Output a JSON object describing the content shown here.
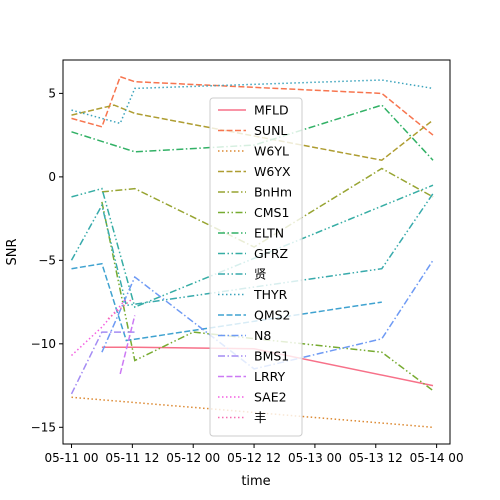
{
  "chart_data": {
    "type": "line",
    "xlabel": "time",
    "ylabel": "SNR",
    "xlim": [
      -0.07,
      3.11
    ],
    "ylim": [
      -16.0,
      7.0
    ],
    "x_ticks": [
      {
        "v": 0.0,
        "label": "05-11 00"
      },
      {
        "v": 0.5,
        "label": "05-11 12"
      },
      {
        "v": 1.0,
        "label": "05-12 00"
      },
      {
        "v": 1.5,
        "label": "05-12 12"
      },
      {
        "v": 2.0,
        "label": "05-13 00"
      },
      {
        "v": 2.5,
        "label": "05-13 12"
      },
      {
        "v": 3.0,
        "label": "05-14 00"
      }
    ],
    "y_ticks": [
      {
        "v": 5,
        "label": "5"
      },
      {
        "v": 0,
        "label": "0"
      },
      {
        "v": -5,
        "label": "−5"
      },
      {
        "v": -10,
        "label": "−10"
      },
      {
        "v": -15,
        "label": "−15"
      }
    ],
    "legend_position": "center",
    "series": [
      {
        "name": "MFLD",
        "color": "#f77189",
        "dash": "solid",
        "x": [
          0.25,
          0.52,
          1.5,
          2.97
        ],
        "y": [
          -10.2,
          -10.2,
          -10.3,
          -12.5
        ]
      },
      {
        "name": "SUNL",
        "color": "#f7754f",
        "dash": "dashed",
        "x": [
          0.0,
          0.25,
          0.4,
          0.52,
          2.55,
          2.97
        ],
        "y": [
          3.5,
          3.0,
          6.0,
          5.7,
          5.0,
          2.5
        ]
      },
      {
        "name": "W6YL",
        "color": "#dc8932",
        "dash": "dotted",
        "x": [
          0.0,
          2.97
        ],
        "y": [
          -13.2,
          -15.0
        ]
      },
      {
        "name": "W6YX",
        "color": "#ae9d31",
        "dash": "dashed",
        "x": [
          0.0,
          0.35,
          0.52,
          2.55,
          2.97
        ],
        "y": [
          3.7,
          4.3,
          3.8,
          1.0,
          3.4
        ]
      },
      {
        "name": "BnHm",
        "color": "#97a431",
        "dash": "dashdot",
        "x": [
          0.25,
          0.52,
          1.5,
          2.55,
          2.97
        ],
        "y": [
          -0.9,
          -0.7,
          -4.2,
          0.5,
          -1.2
        ]
      },
      {
        "name": "CMS1",
        "color": "#77ab31",
        "dash": "dashdot-dot",
        "x": [
          0.25,
          0.52,
          1.0,
          2.55,
          2.97
        ],
        "y": [
          -1.5,
          -11.0,
          -9.3,
          -10.5,
          -12.8
        ]
      },
      {
        "name": "ELTN",
        "color": "#32b166",
        "dash": "dashdot",
        "x": [
          0.0,
          0.52,
          1.5,
          2.55,
          2.97
        ],
        "y": [
          2.7,
          1.5,
          1.9,
          4.3,
          1.0
        ]
      },
      {
        "name": "GFRZ",
        "color": "#36ada4",
        "dash": "dashdot-dot",
        "x": [
          0.0,
          0.25,
          0.52,
          2.97
        ],
        "y": [
          -1.2,
          -0.7,
          -7.8,
          -0.5
        ]
      },
      {
        "name": "贤",
        "color": "#38aaac",
        "dash": "dashdot-dot",
        "x": [
          0.0,
          0.25,
          0.45,
          2.55,
          2.97
        ],
        "y": [
          -5.0,
          -1.7,
          -7.7,
          -5.5,
          -1.0
        ]
      },
      {
        "name": "THYR",
        "color": "#3ba3bc",
        "dash": "dotted",
        "x": [
          0.0,
          0.4,
          0.52,
          2.55,
          2.97
        ],
        "y": [
          4.0,
          3.2,
          5.3,
          5.8,
          5.3
        ]
      },
      {
        "name": "QMS2",
        "color": "#3fa2d0",
        "dash": "dashed",
        "x": [
          0.0,
          0.25,
          0.45,
          2.55
        ],
        "y": [
          -5.5,
          -5.2,
          -9.8,
          -7.5
        ]
      },
      {
        "name": "N8",
        "color": "#6e9af4",
        "dash": "dashdot",
        "x": [
          0.25,
          0.52,
          1.5,
          2.55,
          2.97
        ],
        "y": [
          -10.5,
          -6.0,
          -11.5,
          -9.7,
          -5.0
        ]
      },
      {
        "name": "BMS1",
        "color": "#a48cf4",
        "dash": "dashdot",
        "x": [
          0.0,
          0.25,
          0.52
        ],
        "y": [
          -13.0,
          -9.3,
          -9.3
        ]
      },
      {
        "name": "LRRY",
        "color": "#cc79f4",
        "dash": "dashed",
        "x": [
          0.4,
          0.52
        ],
        "y": [
          -11.8,
          -8.3
        ]
      },
      {
        "name": "SAE2",
        "color": "#f45fe2",
        "dash": "dotted",
        "x": [
          0.0,
          0.25,
          0.45
        ],
        "y": [
          -10.7,
          -9.0,
          -7.3
        ]
      },
      {
        "name": "丰",
        "color": "#f56db0",
        "dash": "dotted",
        "x": [
          0.3,
          0.5
        ],
        "y": [
          -8.5,
          -7.3
        ]
      }
    ]
  }
}
